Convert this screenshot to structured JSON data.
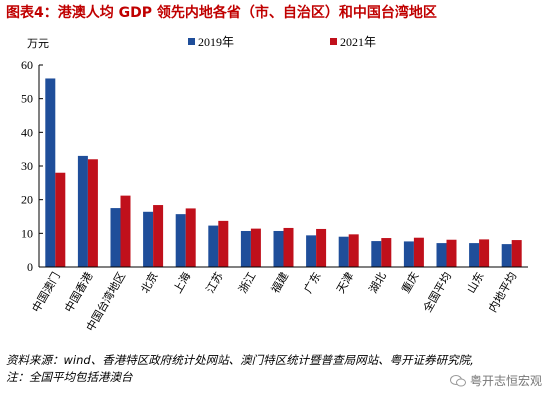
{
  "title": "图表4：港澳人均 GDP 领先内地各省（市、自治区）和中国台湾地区",
  "chart_data": {
    "type": "bar",
    "unit_label": "万元",
    "ylim": [
      0,
      60
    ],
    "yticks": [
      0,
      10,
      20,
      30,
      40,
      50,
      60
    ],
    "categories": [
      "中国澳门",
      "中国香港",
      "中国台湾地区",
      "北京",
      "上海",
      "江苏",
      "浙江",
      "福建",
      "广东",
      "天津",
      "湖北",
      "重庆",
      "全国平均",
      "山东",
      "内地平均"
    ],
    "series": [
      {
        "name": "2019年",
        "color": "#1f4e9a",
        "values": [
          56,
          33,
          17.5,
          16.4,
          15.7,
          12.3,
          10.7,
          10.7,
          9.4,
          9.0,
          7.7,
          7.6,
          7.1,
          7.1,
          6.8
        ]
      },
      {
        "name": "2021年",
        "color": "#c0101b",
        "values": [
          28,
          32,
          21.2,
          18.4,
          17.4,
          13.7,
          11.4,
          11.6,
          11.3,
          9.7,
          8.6,
          8.7,
          8.1,
          8.2,
          8.0
        ]
      }
    ],
    "legend_position": "top"
  },
  "source": "资料来源：wind、香港特区政府统计处网站、澳门特区统计暨普查局网站、粤开证券研究院,",
  "note": "注：全国平均包括港澳台",
  "watermark": "粤开志恒宏观"
}
